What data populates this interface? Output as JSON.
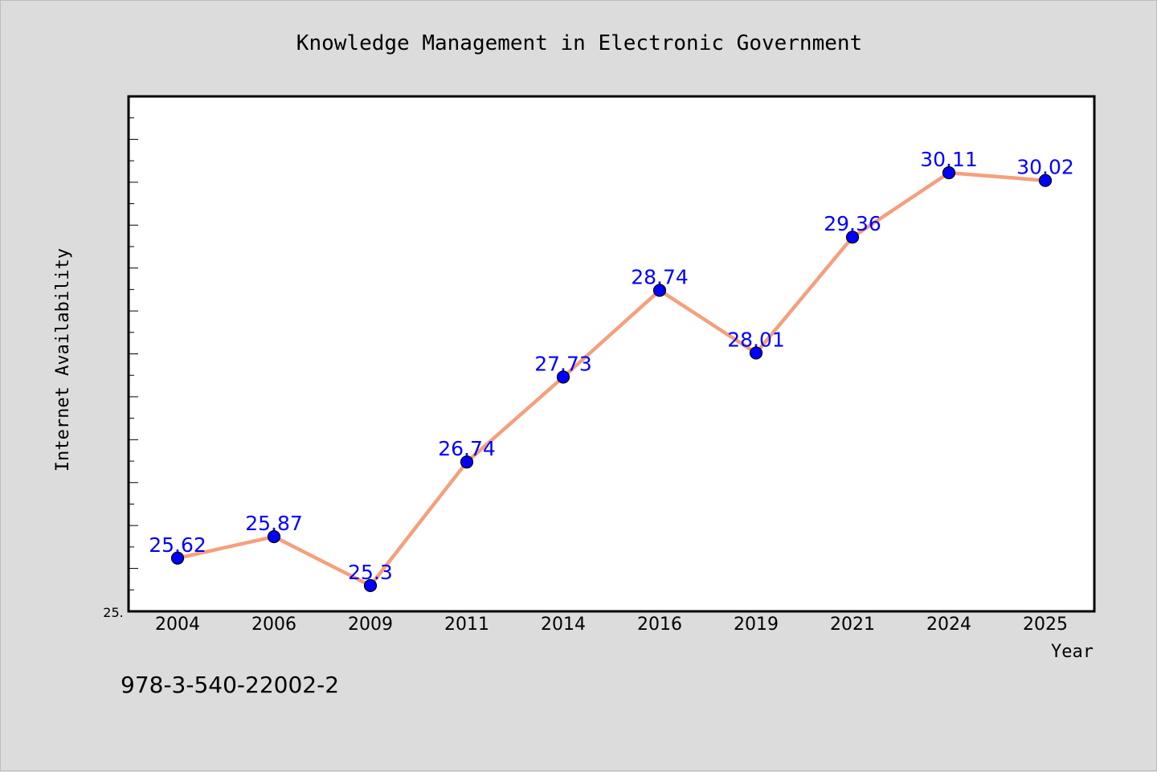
{
  "chart_data": {
    "type": "line",
    "title": "Knowledge Management in Electronic Government",
    "xlabel": "Year",
    "ylabel": "Internet Availability",
    "categories": [
      "2004",
      "2006",
      "2009",
      "2011",
      "2014",
      "2016",
      "2019",
      "2021",
      "2024",
      "2025"
    ],
    "series": [
      {
        "values": [
          25.62,
          25.87,
          25.3,
          26.74,
          27.73,
          28.74,
          28.01,
          29.36,
          30.11,
          30.02
        ]
      }
    ],
    "y_tick_label": "25.",
    "ylim": [
      25.0,
      31.0
    ],
    "grid": false,
    "line_color": "#f4a07d",
    "marker_color": "#0000ff",
    "label_color": "#0000ff",
    "footer_text": "978-3-540-22002-2"
  }
}
